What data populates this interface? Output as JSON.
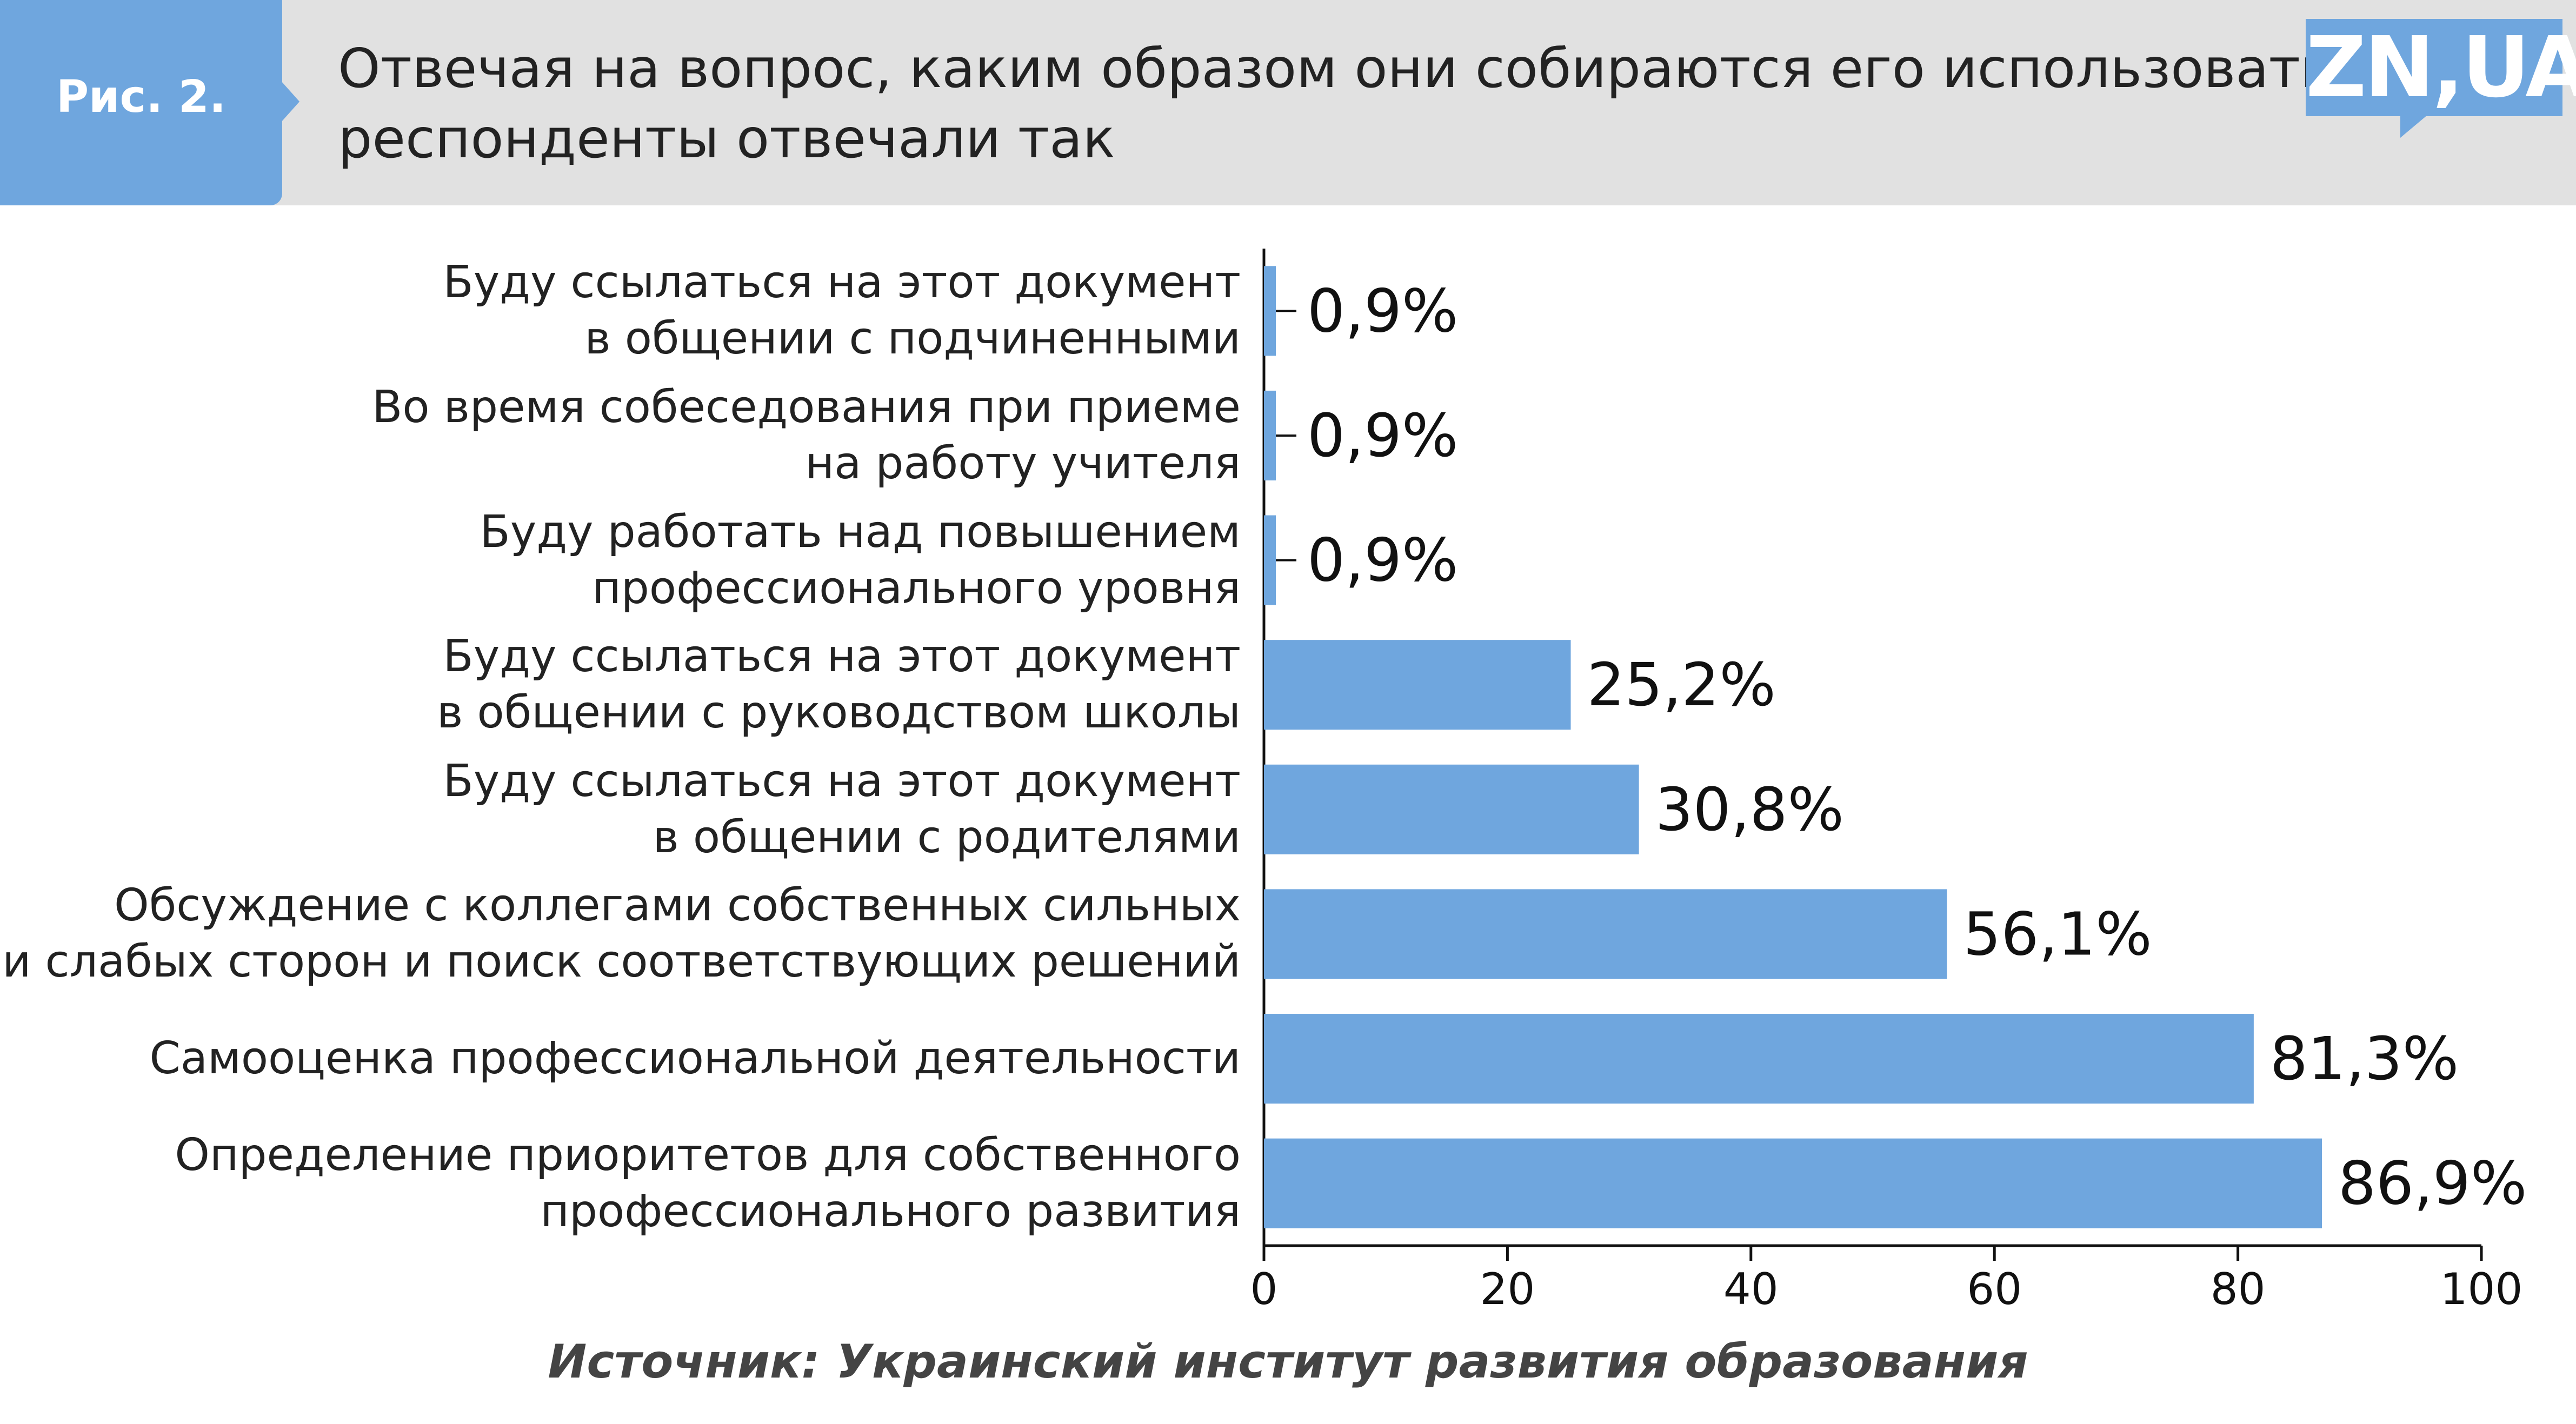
{
  "header": {
    "fig_label": "Рис. 2.",
    "title_lines": [
      "Отвечая на вопрос, каким образом они собираются его использовать,",
      "респонденты отвечали так"
    ],
    "logo_text": "ZN,UA"
  },
  "colors": {
    "accent": "#6fa6de",
    "header_bg": "#e1e1e1",
    "text": "#222222"
  },
  "chart_data": {
    "type": "bar",
    "orientation": "horizontal",
    "categories": [
      [
        "Буду ссылаться на этот документ",
        "в общении с подчиненными"
      ],
      [
        "Во время собеседования при приеме",
        "на работу учителя"
      ],
      [
        "Буду работать над повышением",
        "профессионального уровня"
      ],
      [
        "Буду ссылаться на этот документ",
        "в общении с руководством школы"
      ],
      [
        "Буду ссылаться на этот документ",
        "в общении с родителями"
      ],
      [
        "Обсуждение с коллегами собственных сильных",
        "и слабых сторон и поиск соответствующих решений"
      ],
      [
        "Самооценка профессиональной деятельности"
      ],
      [
        "Определение приоритетов для собственного",
        "профессионального развития"
      ]
    ],
    "values": [
      0.9,
      0.9,
      0.9,
      25.2,
      30.8,
      56.1,
      81.3,
      86.9
    ],
    "value_labels": [
      "0,9%",
      "0,9%",
      "0,9%",
      "25,2%",
      "30,8%",
      "56,1%",
      "81,3%",
      "86,9%"
    ],
    "xlim": [
      0,
      100
    ],
    "xticks": [
      0,
      20,
      40,
      60,
      80,
      100
    ],
    "grid": false,
    "bar_color": "#6fa6de"
  },
  "footer": {
    "source": "Источник: Украинский институт развития образования"
  }
}
